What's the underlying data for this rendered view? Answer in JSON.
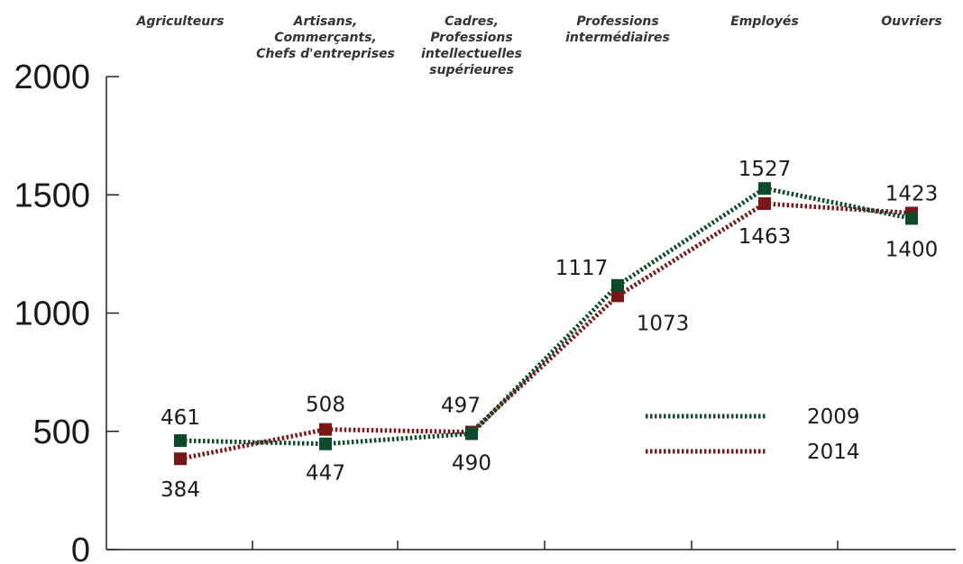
{
  "chart_data": {
    "type": "line",
    "title": "",
    "xlabel": "",
    "ylabel": "",
    "ylim": [
      0,
      2000
    ],
    "yticks": [
      0,
      500,
      1000,
      1500,
      2000
    ],
    "yticks_text": [
      "0",
      "500",
      "1000",
      "1500",
      "2000"
    ],
    "grid": false,
    "legend_position": "right",
    "categories": [
      [
        "Agriculteurs"
      ],
      [
        "Artisans,",
        "Commerçants,",
        "Chefs d'entreprises"
      ],
      [
        "Cadres,",
        "Professions",
        "intellectuelles",
        "supérieures"
      ],
      [
        "Professions",
        "intermédiaires"
      ],
      [
        "Employés"
      ],
      [
        "Ouvriers"
      ]
    ],
    "series": [
      {
        "name": "2009",
        "color": "#0d4a2a",
        "values": [
          461,
          447,
          490,
          1117,
          1527,
          1400
        ],
        "labels": [
          "461",
          "447",
          "490",
          "1117",
          "1527",
          "1400"
        ]
      },
      {
        "name": "2014",
        "color": "#7a1518",
        "values": [
          384,
          508,
          497,
          1073,
          1463,
          1423
        ],
        "labels": [
          "384",
          "508",
          "497",
          "1073",
          "1463",
          "1423"
        ]
      }
    ]
  }
}
